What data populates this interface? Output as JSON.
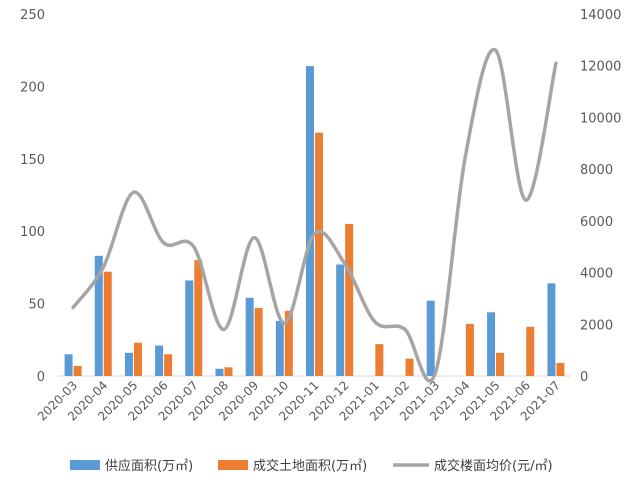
{
  "chart_data": {
    "type": "bar",
    "categories": [
      "2020-03",
      "2020-04",
      "2020-05",
      "2020-06",
      "2020-07",
      "2020-08",
      "2020-09",
      "2020-10",
      "2020-11",
      "2020-12",
      "2021-01",
      "2021-02",
      "2021-03",
      "2021-04",
      "2021-05",
      "2021-06",
      "2021-07"
    ],
    "series": [
      {
        "name": "供应面积(万㎡)",
        "type": "bar",
        "axis": "left",
        "color": "#5B9BD5",
        "values": [
          15,
          83,
          16,
          21,
          66,
          5,
          54,
          38,
          214,
          77,
          0,
          0,
          52,
          0,
          44,
          0,
          64
        ]
      },
      {
        "name": "成交土地面积(万㎡)",
        "type": "bar",
        "axis": "left",
        "color": "#ED7D31",
        "values": [
          7,
          72,
          23,
          15,
          80,
          6,
          47,
          45,
          168,
          105,
          22,
          12,
          0,
          36,
          16,
          34,
          9
        ]
      },
      {
        "name": "成交楼面均价(元/㎡)",
        "type": "line",
        "axis": "right",
        "color": "#A5A5A5",
        "values": [
          2650,
          4200,
          7100,
          5150,
          5000,
          1800,
          5350,
          2050,
          5500,
          4350,
          2100,
          1800,
          100,
          8500,
          12600,
          6800,
          12100
        ]
      }
    ],
    "y_left": {
      "min": 0,
      "max": 250,
      "ticks": [
        0,
        50,
        100,
        150,
        200,
        250
      ]
    },
    "y_right": {
      "min": 0,
      "max": 14000,
      "ticks": [
        0,
        2000,
        4000,
        6000,
        8000,
        10000,
        12000,
        14000
      ]
    },
    "legend_position": "bottom",
    "grid": false
  }
}
